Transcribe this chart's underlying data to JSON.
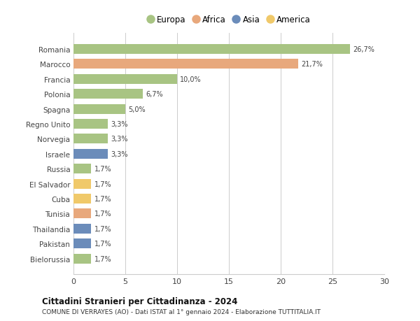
{
  "countries": [
    "Romania",
    "Marocco",
    "Francia",
    "Polonia",
    "Spagna",
    "Regno Unito",
    "Norvegia",
    "Israele",
    "Russia",
    "El Salvador",
    "Cuba",
    "Tunisia",
    "Thailandia",
    "Pakistan",
    "Bielorussia"
  ],
  "values": [
    26.7,
    21.7,
    10.0,
    6.7,
    5.0,
    3.3,
    3.3,
    3.3,
    1.7,
    1.7,
    1.7,
    1.7,
    1.7,
    1.7,
    1.7
  ],
  "labels": [
    "26,7%",
    "21,7%",
    "10,0%",
    "6,7%",
    "5,0%",
    "3,3%",
    "3,3%",
    "3,3%",
    "1,7%",
    "1,7%",
    "1,7%",
    "1,7%",
    "1,7%",
    "1,7%",
    "1,7%"
  ],
  "continents": [
    "Europa",
    "Africa",
    "Europa",
    "Europa",
    "Europa",
    "Europa",
    "Europa",
    "Asia",
    "Europa",
    "America",
    "America",
    "Africa",
    "Asia",
    "Asia",
    "Europa"
  ],
  "colors": {
    "Europa": "#a8c483",
    "Africa": "#e8a87c",
    "Asia": "#6b8cba",
    "America": "#f0c96a"
  },
  "legend_order": [
    "Europa",
    "Africa",
    "Asia",
    "America"
  ],
  "xlim": [
    0,
    30
  ],
  "xticks": [
    0,
    5,
    10,
    15,
    20,
    25,
    30
  ],
  "title": "Cittadini Stranieri per Cittadinanza - 2024",
  "subtitle": "COMUNE DI VERRAYES (AO) - Dati ISTAT al 1° gennaio 2024 - Elaborazione TUTTITALIA.IT",
  "background_color": "#ffffff",
  "grid_color": "#cccccc",
  "bar_height": 0.65
}
